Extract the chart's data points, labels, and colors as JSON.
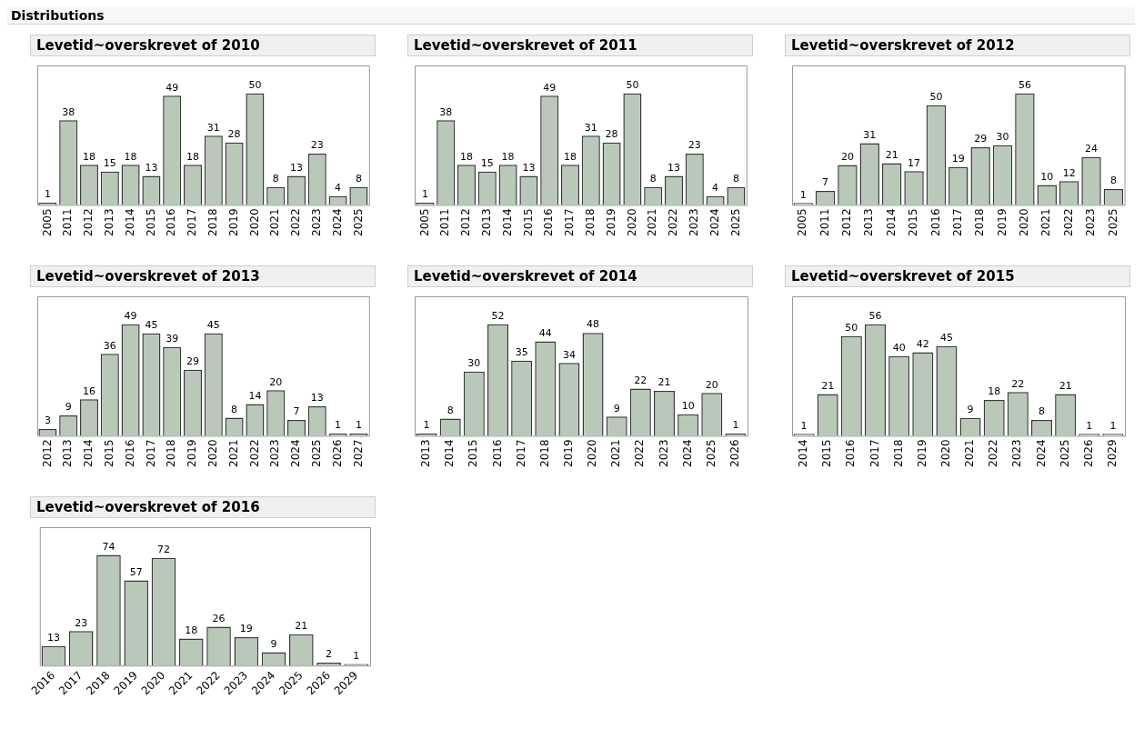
{
  "chart_data": [
    {
      "type": "bar",
      "title": "Levetid~overskrevet of 2010",
      "annotations": [
        "Distributions"
      ],
      "categories": [
        "2005",
        "2011",
        "2012",
        "2013",
        "2014",
        "2015",
        "2016",
        "2017",
        "2018",
        "2019",
        "2020",
        "2021",
        "2022",
        "2023",
        "2024",
        "2025"
      ],
      "values": [
        1,
        38,
        18,
        15,
        18,
        13,
        49,
        18,
        31,
        28,
        50,
        8,
        13,
        23,
        4,
        8
      ],
      "color": "#b9c8b9",
      "data_labels": true,
      "tick_labels": "x"
    },
    {
      "type": "bar",
      "title": "Levetid~overskrevet of 2011",
      "categories": [
        "2005",
        "2011",
        "2012",
        "2013",
        "2014",
        "2015",
        "2016",
        "2017",
        "2018",
        "2019",
        "2020",
        "2021",
        "2022",
        "2023",
        "2024",
        "2025"
      ],
      "values": [
        1,
        38,
        18,
        15,
        18,
        13,
        49,
        18,
        31,
        28,
        50,
        8,
        13,
        23,
        4,
        8
      ],
      "color": "#b9c8b9",
      "data_labels": true,
      "tick_labels": "x"
    },
    {
      "type": "bar",
      "title": "Levetid~overskrevet of 2012",
      "categories": [
        "2005",
        "2011",
        "2012",
        "2013",
        "2014",
        "2015",
        "2016",
        "2017",
        "2018",
        "2019",
        "2020",
        "2021",
        "2022",
        "2023",
        "2025"
      ],
      "values": [
        1,
        7,
        20,
        31,
        21,
        17,
        50,
        19,
        29,
        30,
        56,
        10,
        12,
        24,
        8
      ],
      "color": "#b9c8b9",
      "data_labels": true,
      "tick_labels": "x"
    },
    {
      "type": "bar",
      "title": "Levetid~overskrevet of 2013",
      "categories": [
        "2012",
        "2013",
        "2014",
        "2015",
        "2016",
        "2017",
        "2018",
        "2019",
        "2020",
        "2021",
        "2022",
        "2023",
        "2024",
        "2025",
        "2026",
        "2027"
      ],
      "values": [
        3,
        9,
        16,
        36,
        49,
        45,
        39,
        29,
        45,
        8,
        14,
        20,
        7,
        13,
        1,
        1
      ],
      "color": "#b9c8b9",
      "data_labels": true,
      "tick_labels": "x"
    },
    {
      "type": "bar",
      "title": "Levetid~overskrevet of 2014",
      "categories": [
        "2013",
        "2014",
        "2015",
        "2016",
        "2017",
        "2018",
        "2019",
        "2020",
        "2021",
        "2022",
        "2023",
        "2024",
        "2025",
        "2026"
      ],
      "values": [
        1,
        8,
        30,
        52,
        35,
        44,
        34,
        48,
        9,
        22,
        21,
        10,
        20,
        1
      ],
      "color": "#b9c8b9",
      "data_labels": true,
      "tick_labels": "x"
    },
    {
      "type": "bar",
      "title": "Levetid~overskrevet of 2015",
      "categories": [
        "2014",
        "2015",
        "2016",
        "2017",
        "2018",
        "2019",
        "2020",
        "2021",
        "2022",
        "2023",
        "2024",
        "2025",
        "2026",
        "2029"
      ],
      "values": [
        1,
        21,
        50,
        56,
        40,
        42,
        45,
        9,
        18,
        22,
        8,
        21,
        1,
        1
      ],
      "color": "#b9c8b9",
      "data_labels": true,
      "tick_labels": "x"
    },
    {
      "type": "bar",
      "title": "Levetid~overskrevet of 2016",
      "categories": [
        "2016",
        "2017",
        "2018",
        "2019",
        "2020",
        "2021",
        "2022",
        "2023",
        "2024",
        "2025",
        "2026",
        "2029"
      ],
      "values": [
        13,
        23,
        74,
        57,
        72,
        18,
        26,
        19,
        9,
        21,
        2,
        1
      ],
      "color": "#b9c8b9",
      "data_labels": true,
      "tick_labels": "x"
    }
  ]
}
